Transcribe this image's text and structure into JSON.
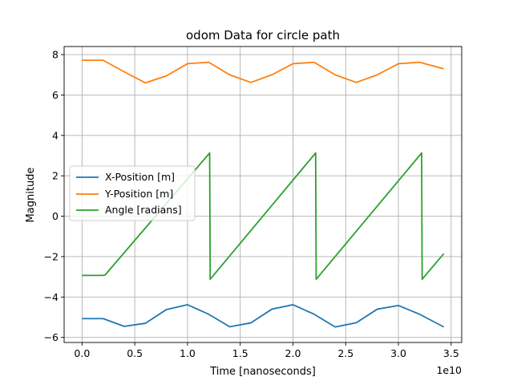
{
  "chart_data": {
    "type": "line",
    "title": "odom Data for circle path",
    "xlabel": "Time [nanoseconds]",
    "ylabel": "Magnitude",
    "x_offset_label": "1e10",
    "xlim": [
      -0.17,
      3.6
    ],
    "ylim": [
      -6.25,
      8.4
    ],
    "x_ticks": [
      0.0,
      0.5,
      1.0,
      1.5,
      2.0,
      2.5,
      3.0,
      3.5
    ],
    "x_tick_labels": [
      "0.0",
      "0.5",
      "1.0",
      "1.5",
      "2.0",
      "2.5",
      "3.0",
      "3.5"
    ],
    "y_ticks": [
      -6,
      -4,
      -2,
      0,
      2,
      4,
      6,
      8
    ],
    "y_tick_labels": [
      "−6",
      "−4",
      "−2",
      "0",
      "2",
      "4",
      "6",
      "8"
    ],
    "grid": true,
    "legend_position": "center-left",
    "series": [
      {
        "name": "X-Position [m]",
        "color": "#1f77b4",
        "x": [
          0.0,
          0.2,
          0.4,
          0.6,
          0.8,
          1.0,
          1.2,
          1.4,
          1.6,
          1.8,
          2.0,
          2.2,
          2.4,
          2.6,
          2.8,
          3.0,
          3.2,
          3.43
        ],
        "y": [
          -5.07,
          -5.07,
          -5.45,
          -5.3,
          -4.62,
          -4.38,
          -4.85,
          -5.47,
          -5.28,
          -4.6,
          -4.38,
          -4.85,
          -5.48,
          -5.27,
          -4.6,
          -4.42,
          -4.85,
          -5.48
        ]
      },
      {
        "name": "Y-Position [m]",
        "color": "#ff7f0e",
        "x": [
          0.0,
          0.2,
          0.4,
          0.6,
          0.8,
          1.0,
          1.2,
          1.4,
          1.6,
          1.8,
          2.0,
          2.2,
          2.4,
          2.6,
          2.8,
          3.0,
          3.2,
          3.43
        ],
        "y": [
          7.72,
          7.72,
          7.15,
          6.6,
          6.95,
          7.55,
          7.62,
          7.0,
          6.62,
          7.0,
          7.55,
          7.62,
          7.0,
          6.62,
          7.0,
          7.55,
          7.62,
          7.3
        ]
      },
      {
        "name": "Angle [radians]",
        "color": "#2ca02c",
        "x": [
          0.0,
          0.2,
          0.22,
          1.21,
          1.215,
          2.215,
          2.22,
          3.22,
          3.225,
          3.43
        ],
        "y": [
          -2.93,
          -2.93,
          -2.9,
          3.13,
          -3.12,
          3.13,
          -3.12,
          3.13,
          -3.12,
          -1.85
        ]
      }
    ]
  }
}
